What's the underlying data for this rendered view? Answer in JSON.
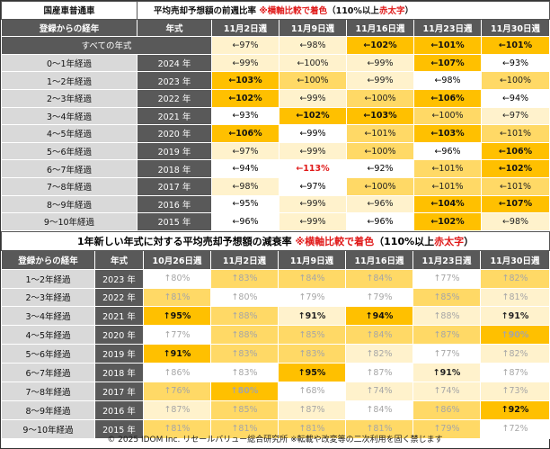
{
  "table1": {
    "corner_title": "国産車普通車",
    "heading_main": "平均売却予想額の前週比率",
    "heading_note": "※横軸比較で着色",
    "heading_rule_prefix": "（110%以上",
    "heading_rule_red": "赤太字",
    "heading_rule_suffix": "）",
    "col_label": "登録からの経年",
    "col_year": "年式",
    "weeks": [
      "11月2日週",
      "11月9日週",
      "11月16日週",
      "11月23日週",
      "11月30日週"
    ],
    "all_years": {
      "label": "すべての年式",
      "values": [
        "←97%",
        "←98%",
        "←102%",
        "←101%",
        "←101%"
      ],
      "styles": [
        "l",
        "l",
        "d",
        "d",
        "d"
      ]
    },
    "rows": [
      {
        "label": "0～1年経過",
        "year": "2024 年",
        "values": [
          "←99%",
          "←100%",
          "←99%",
          "←107%",
          "←93%"
        ],
        "styles": [
          "l",
          "l",
          "l",
          "d",
          "w"
        ]
      },
      {
        "label": "1～2年経過",
        "year": "2023 年",
        "values": [
          "←103%",
          "←100%",
          "←99%",
          "←98%",
          "←100%"
        ],
        "styles": [
          "d",
          "m",
          "l",
          "w",
          "m"
        ]
      },
      {
        "label": "2～3年経過",
        "year": "2022 年",
        "values": [
          "←102%",
          "←99%",
          "←100%",
          "←106%",
          "←94%"
        ],
        "styles": [
          "d",
          "l",
          "m",
          "d",
          "w"
        ]
      },
      {
        "label": "3～4年経過",
        "year": "2021 年",
        "values": [
          "←93%",
          "←102%",
          "←103%",
          "←100%",
          "←97%"
        ],
        "styles": [
          "w",
          "d",
          "d",
          "m",
          "l"
        ]
      },
      {
        "label": "4～5年経過",
        "year": "2020 年",
        "values": [
          "←106%",
          "←99%",
          "←101%",
          "←103%",
          "←101%"
        ],
        "styles": [
          "d",
          "w",
          "m",
          "d",
          "m"
        ]
      },
      {
        "label": "5～6年経過",
        "year": "2019 年",
        "values": [
          "←97%",
          "←99%",
          "←100%",
          "←96%",
          "←106%"
        ],
        "styles": [
          "l",
          "l",
          "m",
          "w",
          "d"
        ]
      },
      {
        "label": "6～7年経過",
        "year": "2018 年",
        "values": [
          "←94%",
          "←113%",
          "←92%",
          "←101%",
          "←102%"
        ],
        "styles": [
          "w",
          "r",
          "w",
          "m",
          "d"
        ]
      },
      {
        "label": "7～8年経過",
        "year": "2017 年",
        "values": [
          "←98%",
          "←97%",
          "←100%",
          "←101%",
          "←101%"
        ],
        "styles": [
          "l",
          "w",
          "m",
          "m",
          "m"
        ]
      },
      {
        "label": "8～9年経過",
        "year": "2016 年",
        "values": [
          "←95%",
          "←99%",
          "←96%",
          "←104%",
          "←107%"
        ],
        "styles": [
          "w",
          "l",
          "l",
          "d",
          "d"
        ]
      },
      {
        "label": "9～10年経過",
        "year": "2015 年",
        "values": [
          "←96%",
          "←99%",
          "←96%",
          "←102%",
          "←98%"
        ],
        "styles": [
          "w",
          "l",
          "w",
          "d",
          "l"
        ]
      }
    ]
  },
  "table2": {
    "heading_main": "1年新しい年式に対する平均売却予想額の減衰率",
    "heading_note": "※横軸比較で着色",
    "heading_rule_prefix": "（110%以上",
    "heading_rule_red": "赤太字",
    "heading_rule_suffix": "）",
    "col_label": "登録からの経年",
    "col_year": "年式",
    "weeks": [
      "10月26日週",
      "11月2日週",
      "11月9日週",
      "11月16日週",
      "11月23日週",
      "11月30日週"
    ],
    "rows": [
      {
        "label": "1～2年経過",
        "year": "2023 年",
        "values": [
          "↑80%",
          "↑83%",
          "↑84%",
          "↑84%",
          "↑77%",
          "↑82%"
        ],
        "styles": [
          "wf",
          "mf",
          "mf",
          "mf",
          "wf",
          "mf"
        ]
      },
      {
        "label": "2～3年経過",
        "year": "2022 年",
        "values": [
          "↑81%",
          "↑80%",
          "↑79%",
          "↑79%",
          "↑85%",
          "↑81%"
        ],
        "styles": [
          "mf",
          "wf",
          "wf",
          "wf",
          "mf",
          "lf"
        ]
      },
      {
        "label": "3～4年経過",
        "year": "2021 年",
        "values": [
          "↑95%",
          "↑88%",
          "↑91%",
          "↑94%",
          "↑88%",
          "↑91%"
        ],
        "styles": [
          "db",
          "mf",
          "lb",
          "db",
          "lf",
          "lb"
        ]
      },
      {
        "label": "4～5年経過",
        "year": "2020 年",
        "values": [
          "↑77%",
          "↑88%",
          "↑85%",
          "↑84%",
          "↑87%",
          "↑90%"
        ],
        "styles": [
          "wf",
          "mf",
          "mf",
          "mf",
          "mf",
          "df"
        ]
      },
      {
        "label": "5～6年経過",
        "year": "2019 年",
        "values": [
          "↑91%",
          "↑83%",
          "↑83%",
          "↑82%",
          "↑77%",
          "↑82%"
        ],
        "styles": [
          "db",
          "mf",
          "mf",
          "lf",
          "wf",
          "lf"
        ]
      },
      {
        "label": "6～7年経過",
        "year": "2018 年",
        "values": [
          "↑86%",
          "↑83%",
          "↑95%",
          "↑87%",
          "↑91%",
          "↑87%"
        ],
        "styles": [
          "wf",
          "wf",
          "db",
          "wf",
          "lb",
          "wf"
        ]
      },
      {
        "label": "7～8年経過",
        "year": "2017 年",
        "values": [
          "↑76%",
          "↑80%",
          "↑68%",
          "↑74%",
          "↑74%",
          "↑73%"
        ],
        "styles": [
          "mf",
          "df",
          "wf",
          "lf",
          "lf",
          "lf"
        ]
      },
      {
        "label": "8～9年経過",
        "year": "2016 年",
        "values": [
          "↑87%",
          "↑85%",
          "↑87%",
          "↑84%",
          "↑86%",
          "↑92%"
        ],
        "styles": [
          "lf",
          "mf",
          "lf",
          "wf",
          "mf",
          "db"
        ]
      },
      {
        "label": "9～10年経過",
        "year": "2015 年",
        "values": [
          "↑81%",
          "↑81%",
          "↑81%",
          "↑81%",
          "↑79%",
          "↑72%"
        ],
        "styles": [
          "mf",
          "mf",
          "mf",
          "mf",
          "mf",
          "wf"
        ]
      }
    ]
  },
  "footer": "© 2025 IDOM Inc. リセールバリュー総合研究所 ※転載や改変等の二次利用を固く禁じます",
  "colors": {
    "light": "#fff2cc",
    "mid": "#ffd966",
    "dark": "#ffc000",
    "header": "#595959",
    "red": "#e01818"
  }
}
